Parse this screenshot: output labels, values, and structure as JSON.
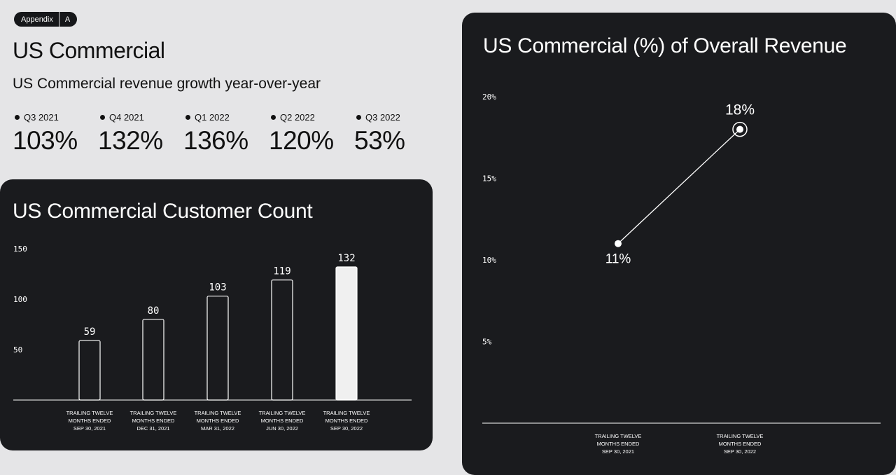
{
  "appendix": {
    "label": "Appendix",
    "letter": "A"
  },
  "header": {
    "title": "US Commercial",
    "subtitle": "US Commercial revenue growth year-over-year"
  },
  "growth": [
    {
      "quarter": "Q3 2021",
      "value": "103%"
    },
    {
      "quarter": "Q4 2021",
      "value": "132%"
    },
    {
      "quarter": "Q1 2022",
      "value": "136%"
    },
    {
      "quarter": "Q2 2022",
      "value": "120%"
    },
    {
      "quarter": "Q3 2022",
      "value": "53%"
    }
  ],
  "chart_data": [
    {
      "type": "bar",
      "title": "US Commercial Customer Count",
      "categories": [
        [
          "TRAILING TWELVE",
          "MONTHS ENDED",
          "SEP 30, 2021"
        ],
        [
          "TRAILING TWELVE",
          "MONTHS ENDED",
          "DEC 31, 2021"
        ],
        [
          "TRAILING TWELVE",
          "MONTHS ENDED",
          "MAR 31, 2022"
        ],
        [
          "TRAILING TWELVE",
          "MONTHS ENDED",
          "JUN 30, 2022"
        ],
        [
          "TRAILING TWELVE",
          "MONTHS ENDED",
          "SEP 30, 2022"
        ]
      ],
      "values": [
        59,
        80,
        103,
        119,
        132
      ],
      "yticks": [
        50,
        100,
        150
      ],
      "ylim": [
        0,
        150
      ],
      "grid": false,
      "colors": {
        "outline": "#ffffff",
        "highlight_fill": "#f0f0f0",
        "background": "#1a1b1e"
      },
      "highlight_index": 4
    },
    {
      "type": "line",
      "title": "US Commercial (%) of Overall Revenue",
      "categories": [
        [
          "TRAILING TWELVE",
          "MONTHS ENDED",
          "SEP 30, 2021"
        ],
        [
          "TRAILING TWELVE",
          "MONTHS ENDED",
          "SEP 30, 2022"
        ]
      ],
      "values": [
        11,
        18
      ],
      "value_labels": [
        "11%",
        "18%"
      ],
      "yticks": [
        "5%",
        "10%",
        "15%",
        "20%"
      ],
      "ytick_values": [
        5,
        10,
        15,
        20
      ],
      "ylim": [
        0,
        20
      ],
      "grid": false,
      "colors": {
        "line": "#ffffff",
        "background": "#1a1b1e"
      }
    }
  ]
}
